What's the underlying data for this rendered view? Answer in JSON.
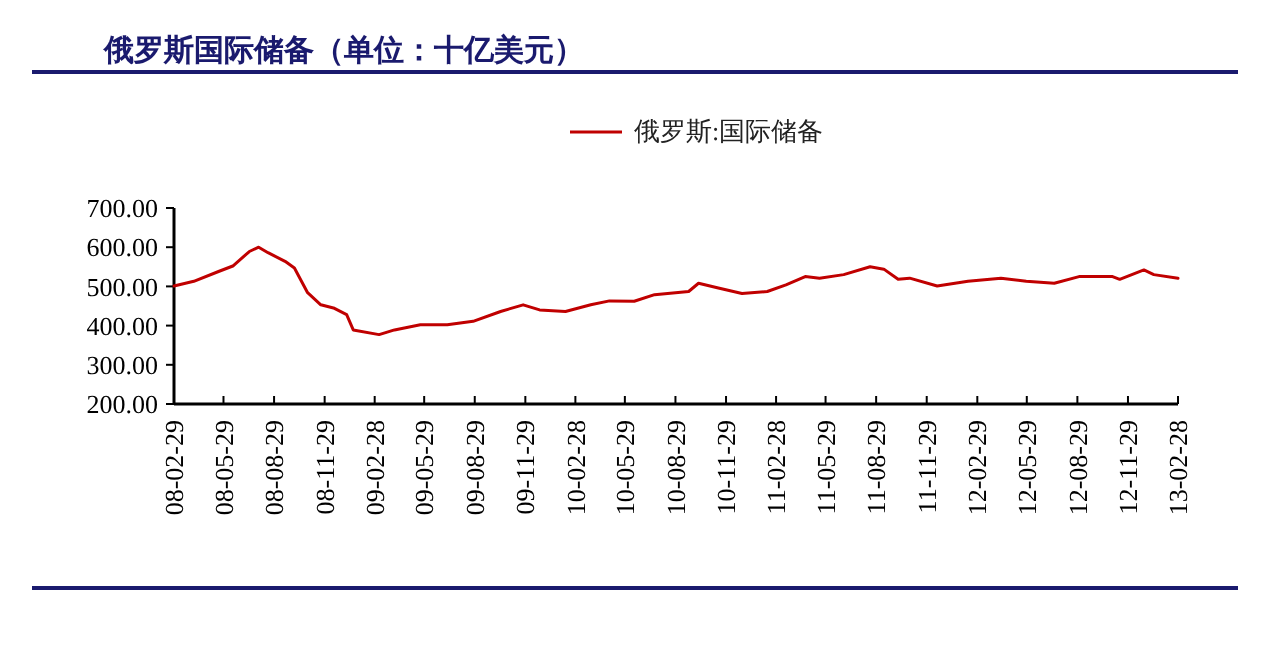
{
  "chart_data": {
    "type": "line",
    "title": "俄罗斯国际储备（单位：十亿美元）",
    "legend": "top",
    "marker": "none",
    "line_style": "solid",
    "grid": false,
    "x": [
      "2008-02-29",
      "2008-04-05",
      "2008-05-20",
      "2008-06-15",
      "2008-07-15",
      "2008-08-01",
      "2008-08-18",
      "2008-09-18",
      "2008-10-05",
      "2008-10-29",
      "2008-11-22",
      "2008-12-15",
      "2009-01-08",
      "2009-01-20",
      "2009-03-08",
      "2009-04-05",
      "2009-05-22",
      "2009-07-10",
      "2009-08-26",
      "2009-10-15",
      "2009-11-25",
      "2009-12-25",
      "2010-02-10",
      "2010-03-28",
      "2010-05-01",
      "2010-06-15",
      "2010-07-22",
      "2010-09-22",
      "2010-10-10",
      "2010-11-15",
      "2010-12-28",
      "2011-02-12",
      "2011-03-18",
      "2011-04-22",
      "2011-05-18",
      "2011-07-01",
      "2011-08-18",
      "2011-09-12",
      "2011-10-08",
      "2011-10-29",
      "2011-12-18",
      "2012-02-12",
      "2012-04-12",
      "2012-05-28",
      "2012-07-18",
      "2012-09-01",
      "2012-11-01",
      "2012-11-14",
      "2012-12-28",
      "2013-01-15",
      "2013-02-28"
    ],
    "series": [
      {
        "name": "俄罗斯:国际储备",
        "color": "#c00000",
        "values": [
          501,
          513,
          538,
          552,
          589,
          600,
          586,
          564,
          547,
          484,
          453,
          445,
          428,
          389,
          377,
          389,
          402,
          402,
          411,
          436,
          453,
          440,
          436,
          453,
          463,
          462,
          479,
          487,
          508,
          496,
          482,
          487,
          504,
          525,
          521,
          530,
          550,
          544,
          518,
          521,
          501,
          513,
          521,
          513,
          508,
          525,
          525,
          518,
          542,
          530,
          521
        ]
      }
    ],
    "xlim": [
      "2008-02-29",
      "2013-02-28"
    ],
    "xticks": [
      {
        "value": "2008-02-29",
        "label": "08-02-29"
      },
      {
        "value": "2008-05-29",
        "label": "08-05-29"
      },
      {
        "value": "2008-08-29",
        "label": "08-08-29"
      },
      {
        "value": "2008-11-29",
        "label": "08-11-29"
      },
      {
        "value": "2009-02-28",
        "label": "09-02-28"
      },
      {
        "value": "2009-05-29",
        "label": "09-05-29"
      },
      {
        "value": "2009-08-29",
        "label": "09-08-29"
      },
      {
        "value": "2009-11-29",
        "label": "09-11-29"
      },
      {
        "value": "2010-02-28",
        "label": "10-02-28"
      },
      {
        "value": "2010-05-29",
        "label": "10-05-29"
      },
      {
        "value": "2010-08-29",
        "label": "10-08-29"
      },
      {
        "value": "2010-11-29",
        "label": "10-11-29"
      },
      {
        "value": "2011-02-28",
        "label": "11-02-28"
      },
      {
        "value": "2011-05-29",
        "label": "11-05-29"
      },
      {
        "value": "2011-08-29",
        "label": "11-08-29"
      },
      {
        "value": "2011-11-29",
        "label": "11-11-29"
      },
      {
        "value": "2012-02-29",
        "label": "12-02-29"
      },
      {
        "value": "2012-05-29",
        "label": "12-05-29"
      },
      {
        "value": "2012-08-29",
        "label": "12-08-29"
      },
      {
        "value": "2012-11-29",
        "label": "12-11-29"
      },
      {
        "value": "2013-02-28",
        "label": "13-02-28"
      }
    ],
    "ylim": [
      200,
      700
    ],
    "yticks": [
      {
        "value": 200,
        "label": "200.00"
      },
      {
        "value": 300,
        "label": "300.00"
      },
      {
        "value": 400,
        "label": "400.00"
      },
      {
        "value": 500,
        "label": "500.00"
      },
      {
        "value": 600,
        "label": "600.00"
      },
      {
        "value": 700,
        "label": "700.00"
      }
    ]
  }
}
